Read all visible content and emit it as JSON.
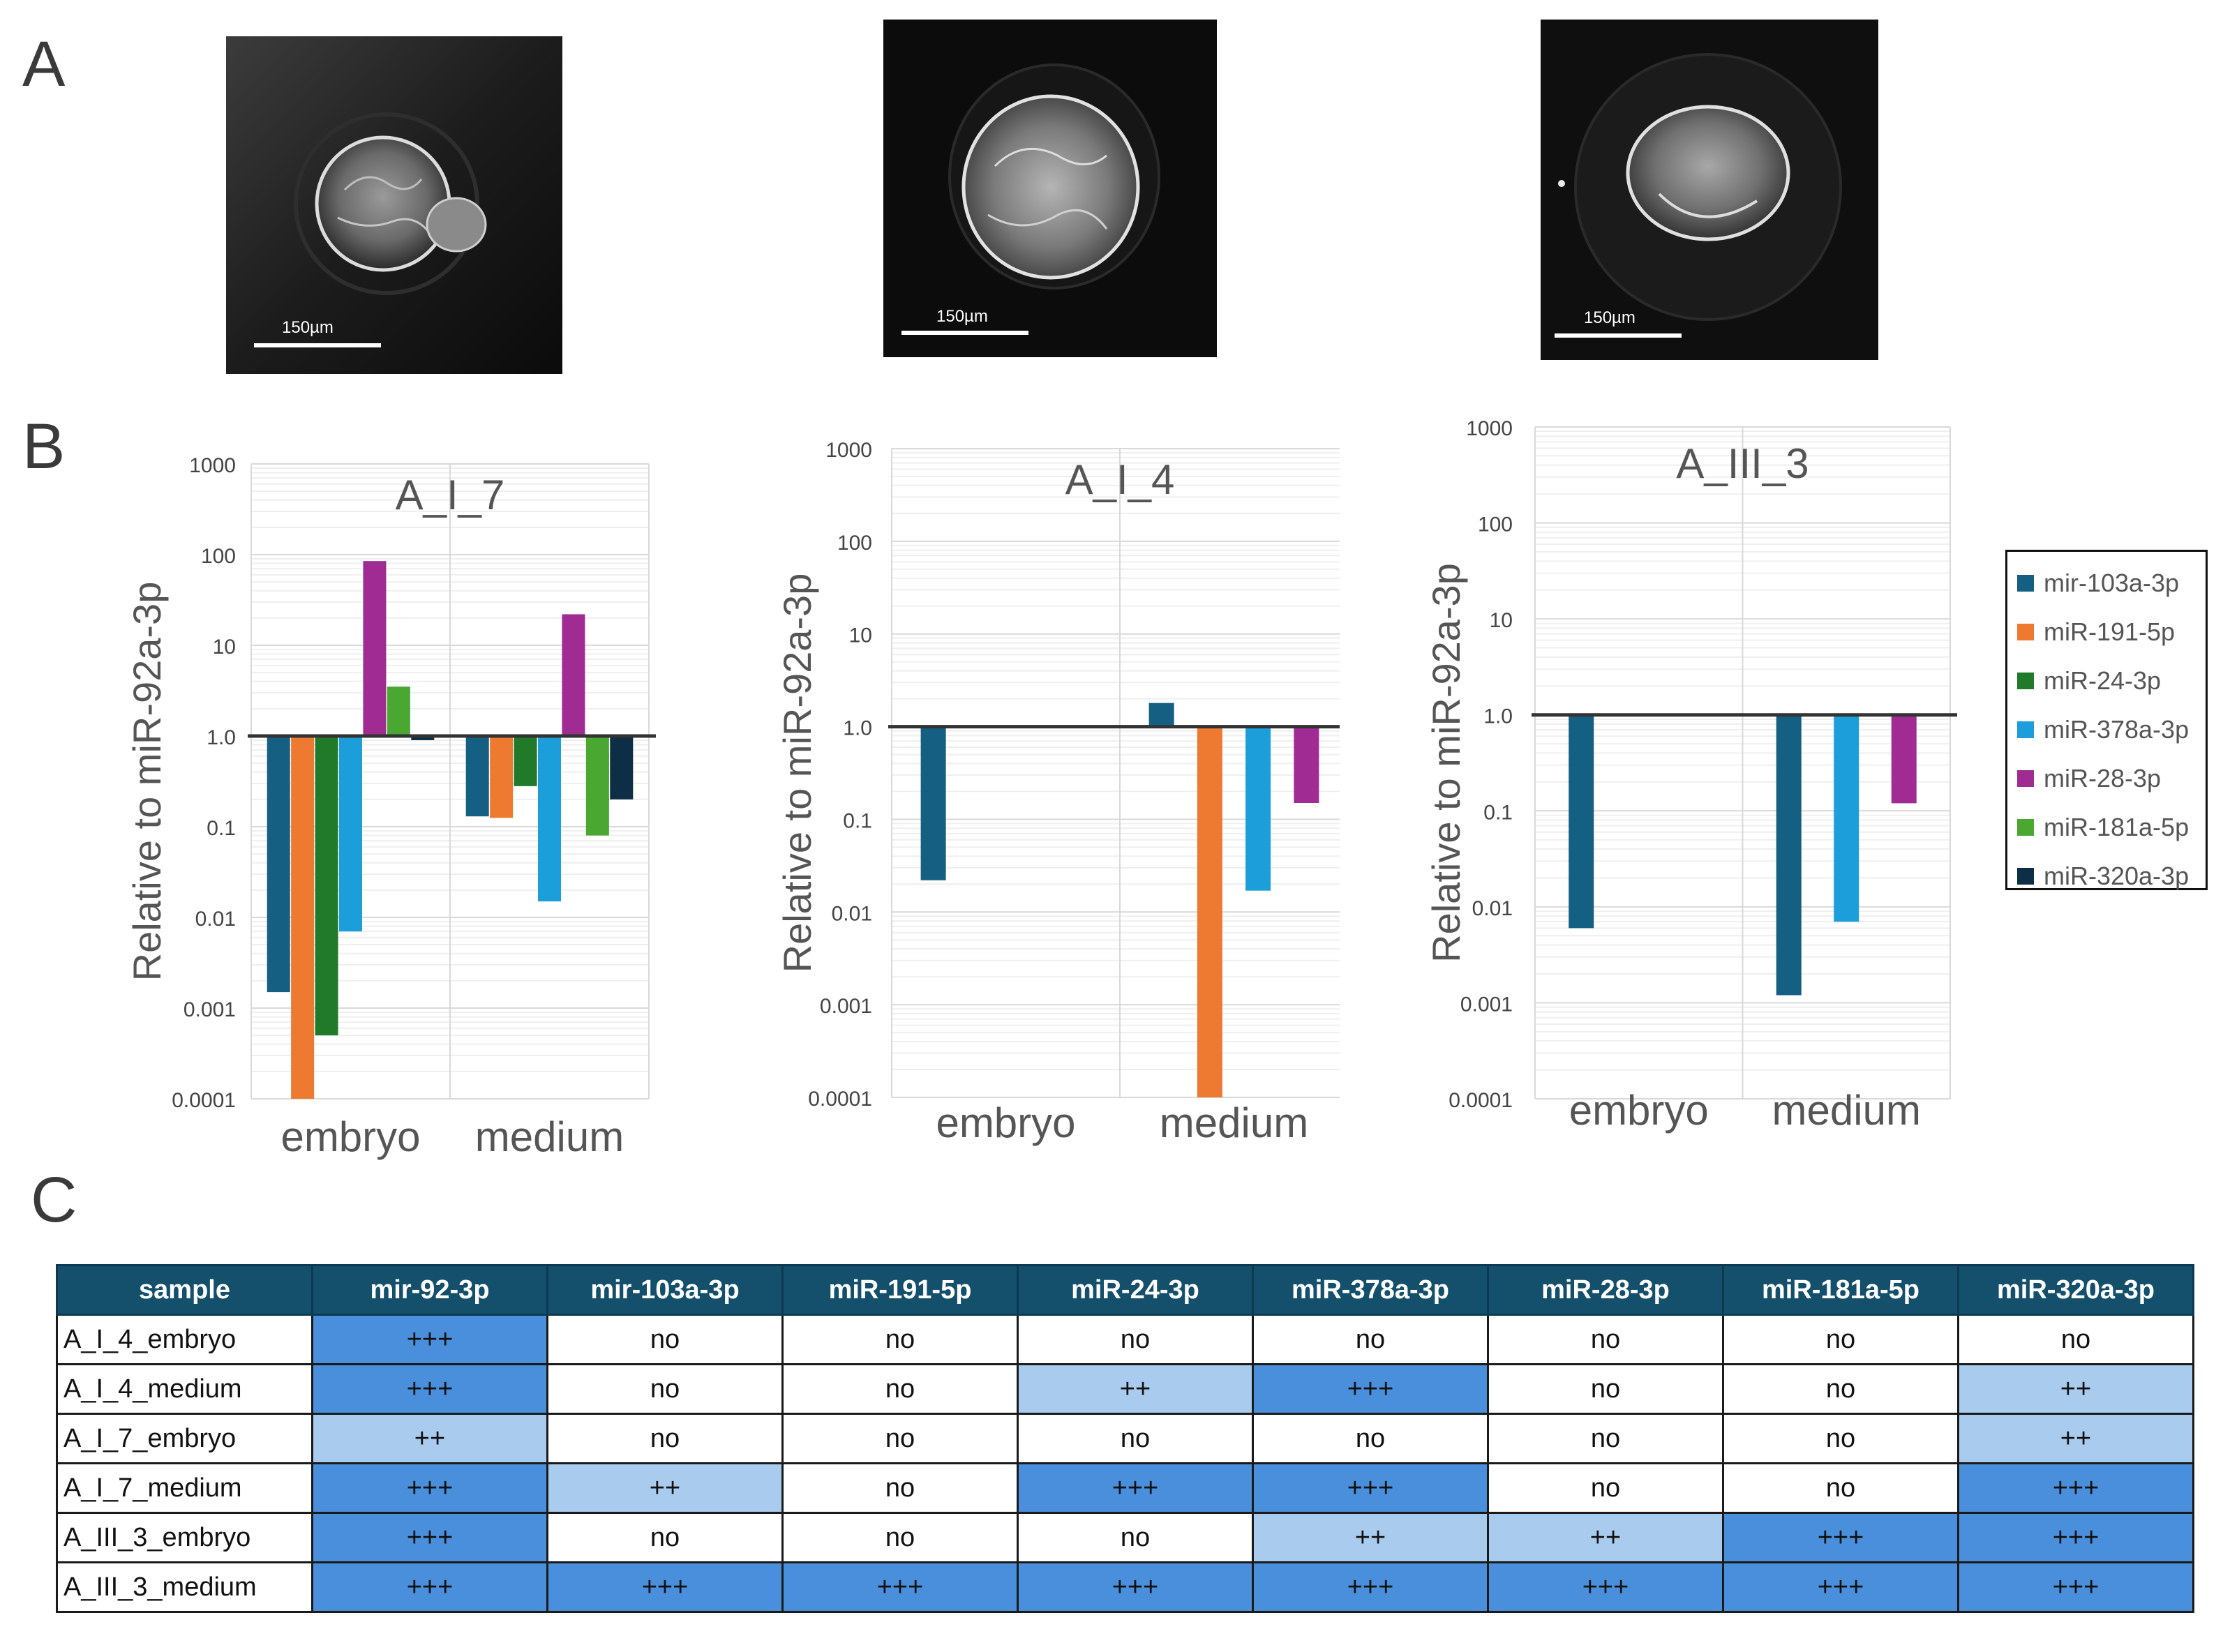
{
  "panels": {
    "a": "A",
    "b": "B",
    "c": "C"
  },
  "micrographs": [
    {
      "scale_label": "150µm"
    },
    {
      "scale_label": "150µm"
    },
    {
      "scale_label": "150µm"
    }
  ],
  "colors": {
    "mir-103a-3p": "#155f82",
    "miR-191-5p": "#ee7a32",
    "miR-24-3p": "#217a2a",
    "miR-378a-3p": "#1b9ed9",
    "miR-28-3p": "#a02b93",
    "miR-181a-5p": "#4aa732",
    "miR-320a-3p": "#0e2e45"
  },
  "legend": [
    "mir-103a-3p",
    "miR-191-5p",
    "miR-24-3p",
    "miR-378a-3p",
    "miR-28-3p",
    "miR-181a-5p",
    "miR-320a-3p"
  ],
  "chart_data": [
    {
      "type": "bar",
      "title": "A_I_7",
      "ylabel": "Relative to miR-92a-3p",
      "yscale": "log",
      "ylim": [
        0.0001,
        1000
      ],
      "yticks": [
        "0.0001",
        "0.001",
        "0.01",
        "0.1",
        "1.0",
        "10",
        "100",
        "1000"
      ],
      "categories": [
        "embryo",
        "medium"
      ],
      "series": [
        {
          "name": "mir-103a-3p",
          "values": [
            0.0015,
            0.13
          ]
        },
        {
          "name": "miR-191-5p",
          "values": [
            0.0001,
            0.125
          ]
        },
        {
          "name": "miR-24-3p",
          "values": [
            0.0005,
            0.28
          ]
        },
        {
          "name": "miR-378a-3p",
          "values": [
            0.007,
            0.015
          ]
        },
        {
          "name": "miR-28-3p",
          "values": [
            85,
            22
          ]
        },
        {
          "name": "miR-181a-5p",
          "values": [
            3.5,
            0.08
          ]
        },
        {
          "name": "miR-320a-3p",
          "values": [
            0.9,
            0.2
          ]
        }
      ]
    },
    {
      "type": "bar",
      "title": "A_I_4",
      "ylabel": "Relative to miR-92a-3p",
      "yscale": "log",
      "ylim": [
        0.0001,
        1000
      ],
      "yticks": [
        "0.0001",
        "0.001",
        "0.01",
        "0.1",
        "1.0",
        "10",
        "100",
        "1000"
      ],
      "categories": [
        "embryo",
        "medium"
      ],
      "series": [
        {
          "name": "mir-103a-3p",
          "values": [
            0.022,
            1.8
          ]
        },
        {
          "name": "miR-191-5p",
          "values": [
            null,
            0.0001
          ]
        },
        {
          "name": "miR-378a-3p",
          "values": [
            null,
            0.017
          ]
        },
        {
          "name": "miR-28-3p",
          "values": [
            null,
            0.15
          ]
        }
      ]
    },
    {
      "type": "bar",
      "title": "A_III_3",
      "ylabel": "Relative to miR-92a-3p",
      "yscale": "log",
      "ylim": [
        0.0001,
        1000
      ],
      "yticks": [
        "0.0001",
        "0.001",
        "0.01",
        "0.1",
        "1.0",
        "10",
        "100",
        "1000"
      ],
      "categories": [
        "embryo",
        "medium"
      ],
      "series": [
        {
          "name": "mir-103a-3p",
          "values": [
            0.006,
            0.0012
          ]
        },
        {
          "name": "miR-378a-3p",
          "values": [
            null,
            0.007
          ]
        },
        {
          "name": "miR-28-3p",
          "values": [
            null,
            0.12
          ]
        }
      ]
    },
    {
      "type": "table",
      "columns": [
        "sample",
        "mir-92-3p",
        "mir-103a-3p",
        "miR-191-5p",
        "miR-24-3p",
        "miR-378a-3p",
        "miR-28-3p",
        "miR-181a-5p",
        "miR-320a-3p"
      ],
      "rows": [
        [
          "A_I_4_embryo",
          "+++",
          "no",
          "no",
          "no",
          "no",
          "no",
          "no",
          "no"
        ],
        [
          "A_I_4_medium",
          "+++",
          "no",
          "no",
          "++",
          "+++",
          "no",
          "no",
          "++"
        ],
        [
          "A_I_7_embryo",
          "++",
          "no",
          "no",
          "no",
          "no",
          "no",
          "no",
          "++"
        ],
        [
          "A_I_7_medium",
          "+++",
          "++",
          "no",
          "+++",
          "+++",
          "no",
          "no",
          "+++"
        ],
        [
          "A_III_3_embryo",
          "+++",
          "no",
          "no",
          "no",
          "++",
          "++",
          "+++",
          "+++"
        ],
        [
          "A_III_3_medium",
          "+++",
          "+++",
          "+++",
          "+++",
          "+++",
          "+++",
          "+++",
          "+++"
        ]
      ]
    }
  ]
}
